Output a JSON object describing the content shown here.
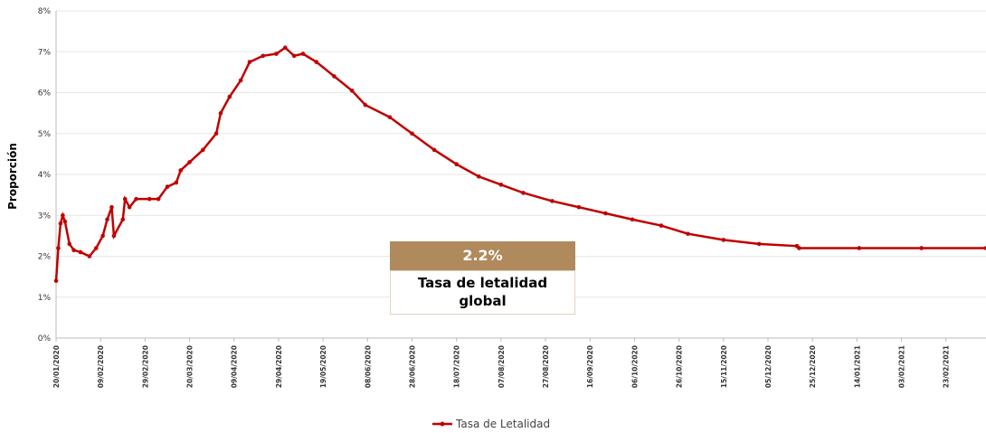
{
  "chart_data": {
    "type": "line",
    "y_label": "Proporción",
    "x": [
      "20/01/2020",
      "21/01/2020",
      "22/01/2020",
      "23/01/2020",
      "24/01/2020",
      "26/01/2020",
      "28/01/2020",
      "31/01/2020",
      "04/02/2020",
      "07/02/2020",
      "10/02/2020",
      "12/02/2020",
      "14/02/2020",
      "15/02/2020",
      "19/02/2020",
      "20/02/2020",
      "22/02/2020",
      "25/02/2020",
      "02/03/2020",
      "06/03/2020",
      "10/03/2020",
      "14/03/2020",
      "16/03/2020",
      "20/03/2020",
      "26/03/2020",
      "01/04/2020",
      "03/04/2020",
      "07/04/2020",
      "12/04/2020",
      "16/04/2020",
      "22/04/2020",
      "28/04/2020",
      "02/05/2020",
      "06/05/2020",
      "10/05/2020",
      "16/05/2020",
      "24/05/2020",
      "01/06/2020",
      "07/06/2020",
      "18/06/2020",
      "28/06/2020",
      "08/07/2020",
      "18/07/2020",
      "28/07/2020",
      "07/08/2020",
      "17/08/2020",
      "30/08/2020",
      "11/09/2020",
      "23/09/2020",
      "05/10/2020",
      "18/10/2020",
      "30/10/2020",
      "15/11/2020",
      "01/12/2020",
      "18/12/2020",
      "19/12/2020",
      "15/01/2021",
      "12/02/2021",
      "13/03/2021"
    ],
    "series": [
      {
        "name": "Tasa de Letalidad",
        "color": "#c00000",
        "values": [
          1.4,
          2.2,
          2.8,
          3.0,
          2.85,
          2.3,
          2.15,
          2.1,
          2.0,
          2.2,
          2.5,
          2.9,
          3.2,
          2.5,
          2.9,
          3.4,
          3.2,
          3.4,
          3.4,
          3.4,
          3.7,
          3.8,
          4.1,
          4.3,
          4.6,
          5.0,
          5.5,
          5.9,
          6.3,
          6.75,
          6.9,
          6.95,
          7.1,
          6.9,
          6.95,
          6.75,
          6.4,
          6.05,
          5.7,
          5.4,
          5.0,
          4.6,
          4.25,
          3.95,
          3.75,
          3.55,
          3.35,
          3.2,
          3.05,
          2.9,
          2.75,
          2.55,
          2.4,
          2.3,
          2.25,
          2.2,
          2.2,
          2.2,
          2.2
        ]
      }
    ],
    "xlim": [
      "20/01/2020",
      "13/03/2021"
    ],
    "xticks": [
      "20/01/2020",
      "09/02/2020",
      "29/02/2020",
      "20/03/2020",
      "09/04/2020",
      "29/04/2020",
      "19/05/2020",
      "08/06/2020",
      "28/06/2020",
      "18/07/2020",
      "07/08/2020",
      "27/08/2020",
      "16/09/2020",
      "06/10/2020",
      "26/10/2020",
      "15/11/2020",
      "05/12/2020",
      "25/12/2020",
      "14/01/2021",
      "03/02/2021",
      "23/02/2021"
    ],
    "ylim": [
      0,
      8
    ],
    "yticks": [
      {
        "value": 0,
        "label": "0%"
      },
      {
        "value": 1,
        "label": "1%"
      },
      {
        "value": 2,
        "label": "2%"
      },
      {
        "value": 3,
        "label": "3%"
      },
      {
        "value": 4,
        "label": "4%"
      },
      {
        "value": 5,
        "label": "5%"
      },
      {
        "value": 6,
        "label": "6%"
      },
      {
        "value": 7,
        "label": "7%"
      },
      {
        "value": 8,
        "label": "8%"
      }
    ],
    "grid": true,
    "annotation": {
      "value": "2.2%",
      "text": "Tasa de letalidad global"
    }
  }
}
